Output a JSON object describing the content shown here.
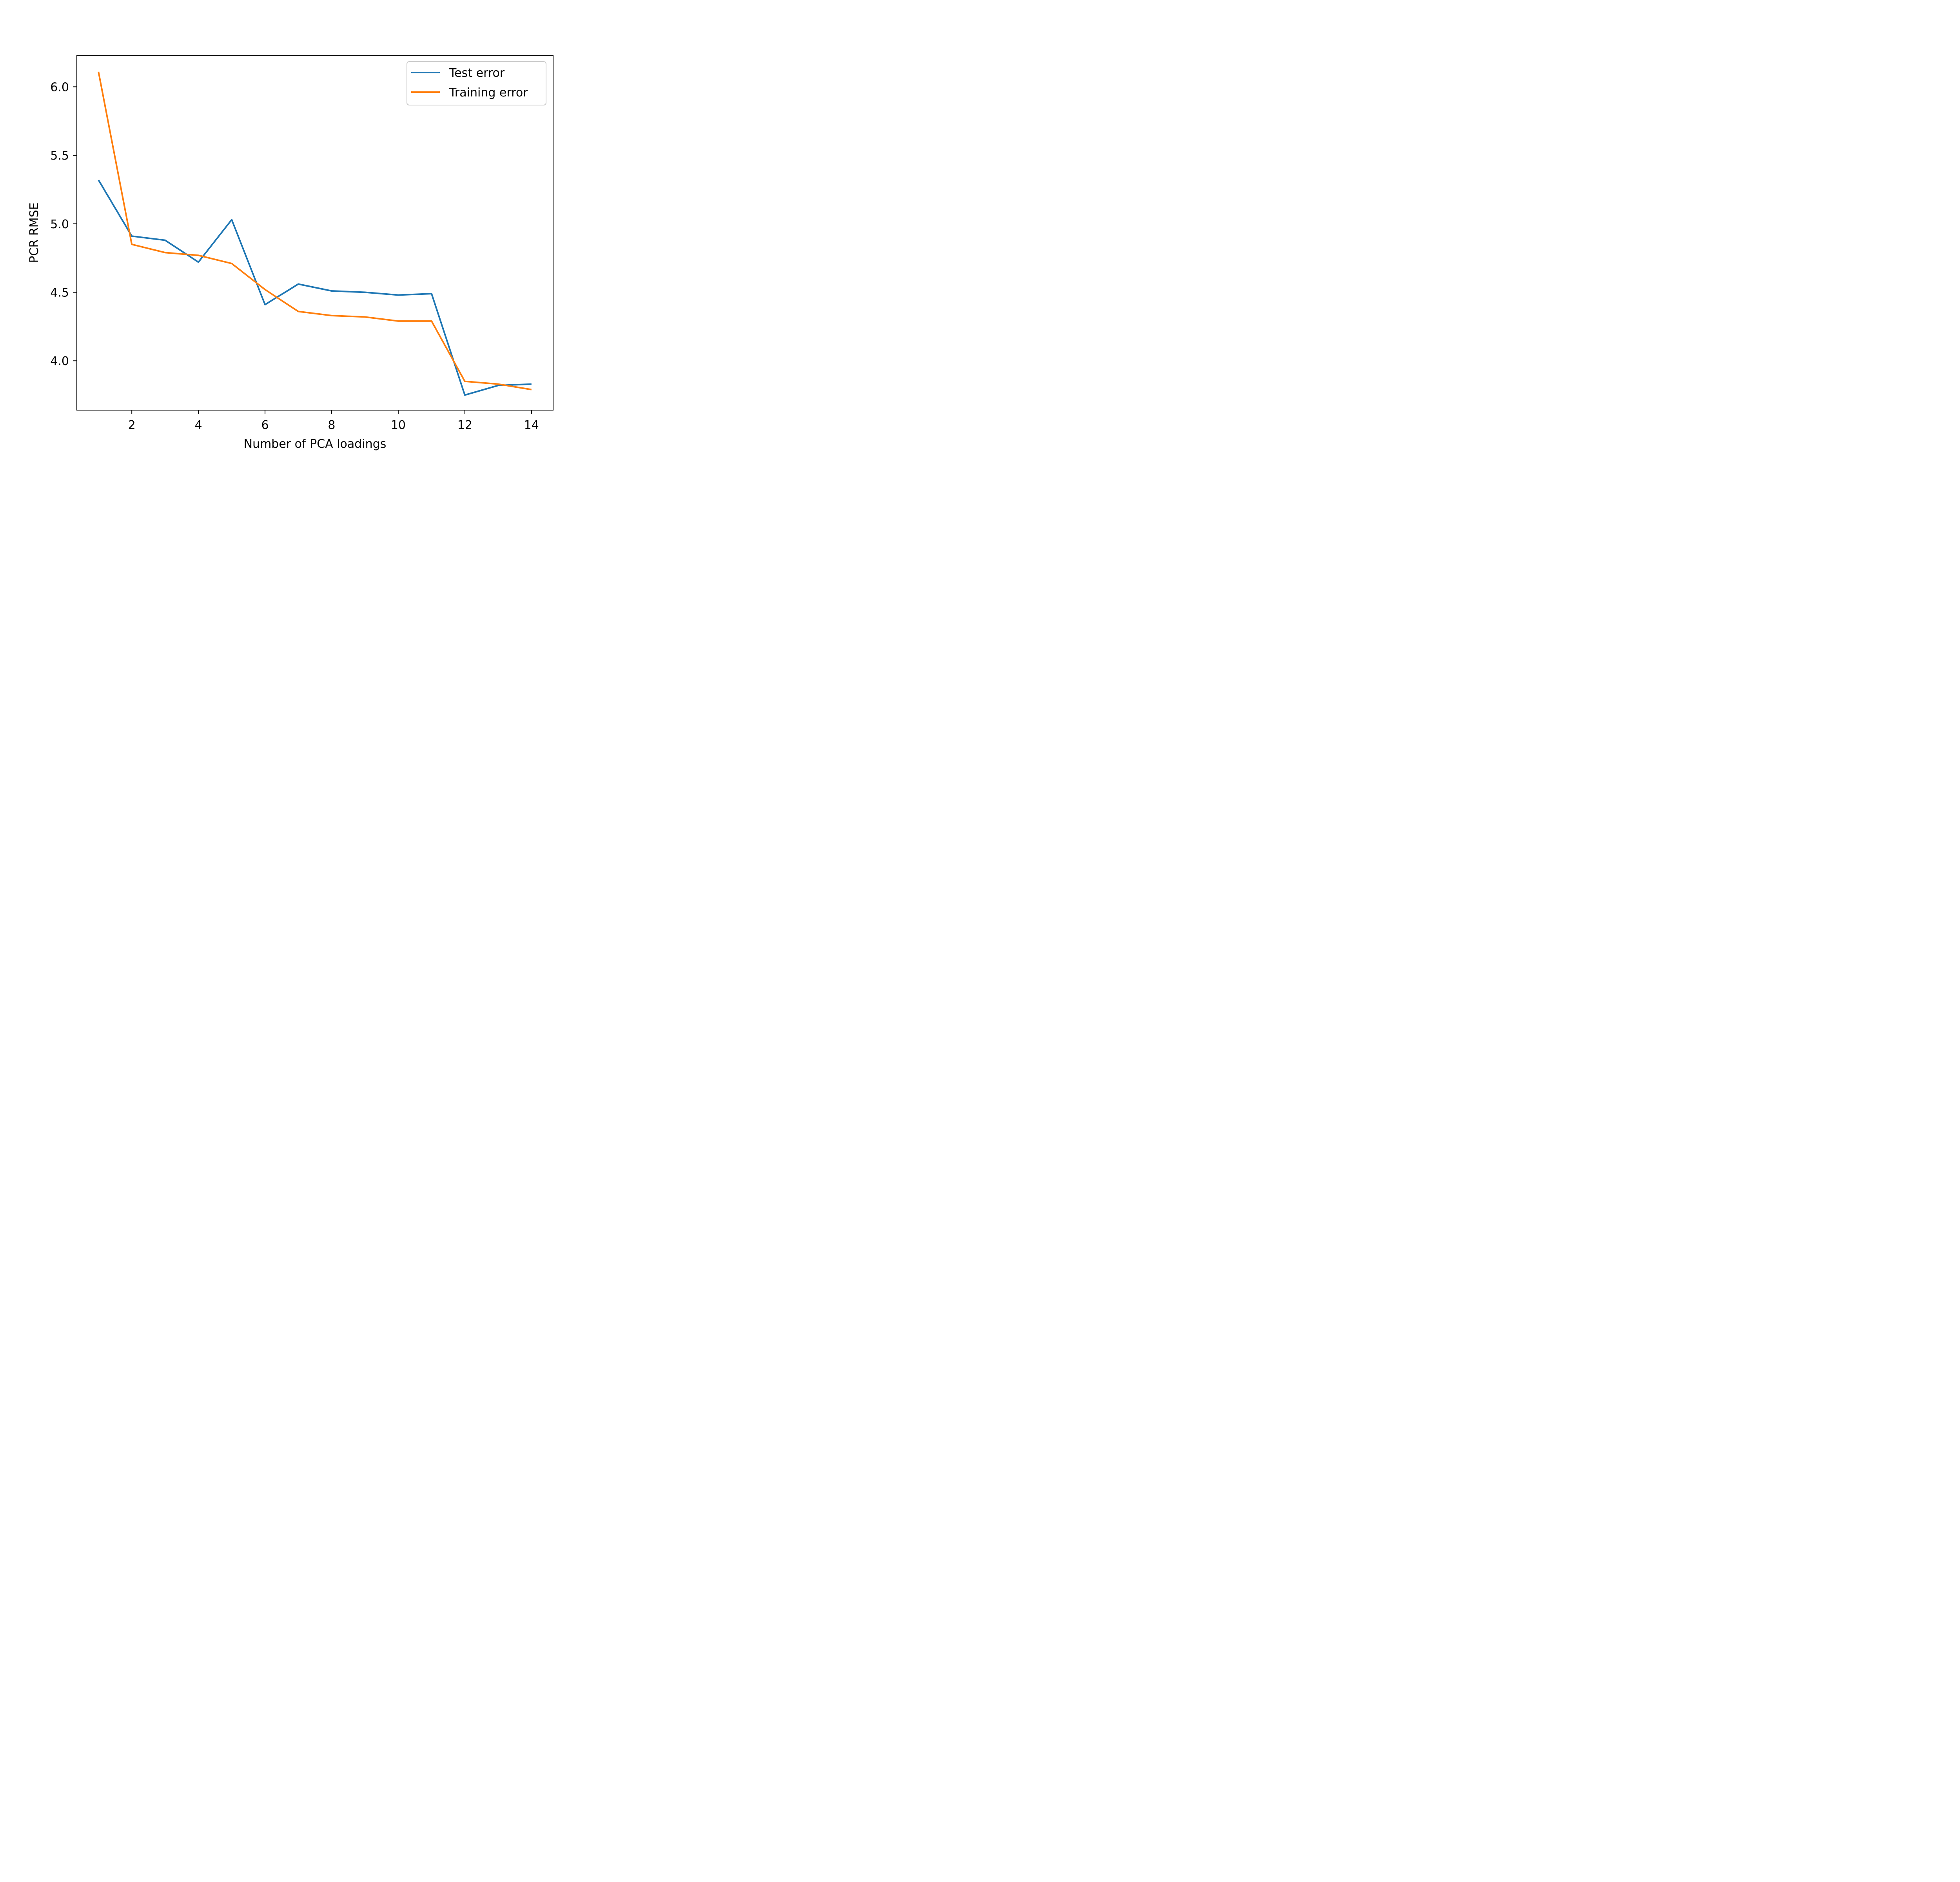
{
  "chart_data": {
    "type": "line",
    "xlabel": "Number of PCA loadings",
    "ylabel": "PCR RMSE",
    "xlim": [
      0.35,
      14.65
    ],
    "ylim": [
      3.64,
      6.23
    ],
    "xticks": [
      2,
      4,
      6,
      8,
      10,
      12,
      14
    ],
    "xtick_labels": [
      "2",
      "4",
      "6",
      "8",
      "10",
      "12",
      "14"
    ],
    "yticks": [
      4.0,
      4.5,
      5.0,
      5.5,
      6.0
    ],
    "ytick_labels": [
      "4.0",
      "4.5",
      "5.0",
      "5.5",
      "6.0"
    ],
    "grid": false,
    "legend_position": "top-right",
    "x": [
      1,
      2,
      3,
      4,
      5,
      6,
      7,
      8,
      9,
      10,
      11,
      12,
      13,
      14
    ],
    "series": [
      {
        "name": "Test error",
        "color": "#1f77b4",
        "values": [
          5.32,
          4.91,
          4.88,
          4.72,
          5.03,
          4.41,
          4.56,
          4.51,
          4.5,
          4.48,
          4.49,
          3.75,
          3.82,
          3.83
        ]
      },
      {
        "name": "Training error",
        "color": "#ff7f0e",
        "values": [
          6.11,
          4.85,
          4.79,
          4.77,
          4.71,
          4.52,
          4.36,
          4.33,
          4.32,
          4.29,
          4.29,
          3.85,
          3.83,
          3.79
        ]
      }
    ]
  }
}
